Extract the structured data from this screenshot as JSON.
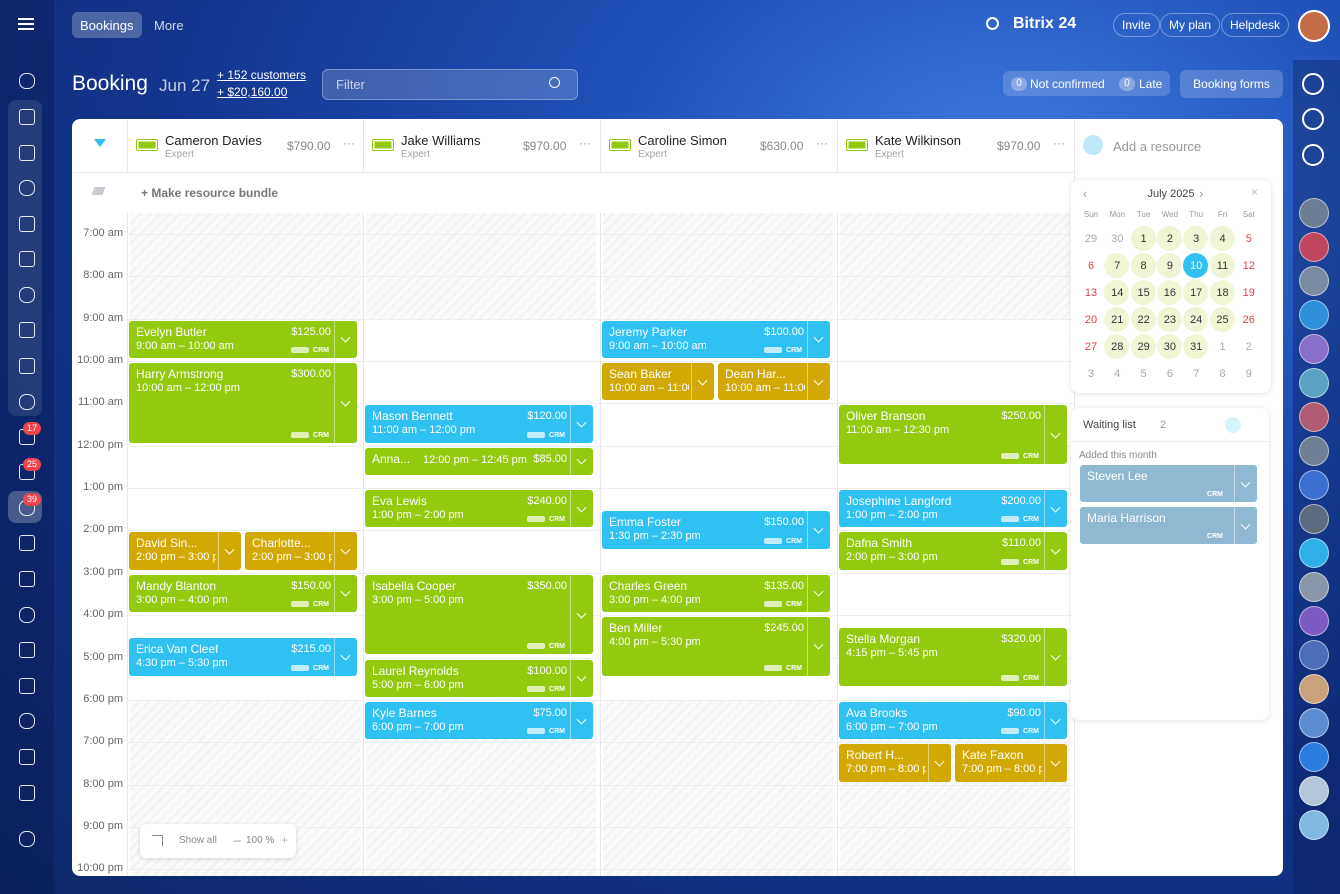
{
  "topbar": {
    "tabs": [
      "Bookings",
      "More"
    ],
    "brand": "Bitrix 24",
    "buttons": [
      "Invite",
      "My plan",
      "Helpdesk"
    ]
  },
  "header": {
    "title": "Booking",
    "date": "Jun 27",
    "customers": "+ 152 customers",
    "revenue": "+ $20,160.00",
    "filter": "Filter",
    "badges": [
      {
        "count": "0",
        "label": "Not confirmed"
      },
      {
        "count": "0",
        "label": "Late"
      }
    ],
    "forms": "Booking forms"
  },
  "sidebar_badges": [
    "17",
    "25",
    "39"
  ],
  "schedule": {
    "bundle": "Make resource bundle",
    "add_resource": "Add a resource",
    "crm_label": "CRM",
    "hour_range": [
      7,
      22
    ],
    "hours": [
      "7:00 am",
      "8:00 am",
      "9:00 am",
      "10:00 am",
      "11:00 am",
      "12:00 pm",
      "1:00 pm",
      "2:00 pm",
      "3:00 pm",
      "4:00 pm",
      "5:00 pm",
      "6:00 pm",
      "7:00 pm",
      "8:00 pm",
      "9:00 pm",
      "10:00 pm"
    ],
    "resources": [
      {
        "name": "Cameron Davies",
        "role": "Expert",
        "amount": "$790.00",
        "bookings": [
          {
            "name": "Evelyn Butler",
            "time": "9:00 am – 10:00 am",
            "price": "$125.00",
            "color": "#93c90f",
            "start": 9,
            "end": 10
          },
          {
            "name": "Harry Armstrong",
            "time": "10:00 am – 12:00 pm",
            "price": "$300.00",
            "color": "#93c90f",
            "start": 10,
            "end": 12
          },
          {
            "name": "David Sin...",
            "time": "2:00 pm – 3:00 p",
            "color": "#d2a804",
            "start": 14,
            "end": 15
          },
          {
            "name": "Charlotte...",
            "time": "2:00 pm – 3:00 p",
            "color": "#d2a804",
            "start": 14,
            "end": 15
          },
          {
            "name": "Mandy Blanton",
            "time": "3:00 pm – 4:00 pm",
            "price": "$150.00",
            "color": "#93c90f",
            "start": 15,
            "end": 16
          },
          {
            "name": "Erica Van Cleef",
            "time": "4:30 pm – 5:30 pm",
            "price": "$215.00",
            "color": "#2fc1f2",
            "start": 16.5,
            "end": 17.5
          }
        ]
      },
      {
        "name": "Jake Williams",
        "role": "Expert",
        "amount": "$970.00",
        "bookings": [
          {
            "name": "Mason Bennett",
            "time": "11:00 am – 12:00 pm",
            "price": "$120.00",
            "color": "#2fc1f2",
            "start": 11,
            "end": 12
          },
          {
            "name": "Anna...",
            "time": "12:00 pm – 12:45 pm",
            "price": "$85.00",
            "color": "#93c90f",
            "start": 12,
            "end": 12.75
          },
          {
            "name": "Eva Lewis",
            "time": "1:00 pm – 2:00 pm",
            "price": "$240.00",
            "color": "#93c90f",
            "start": 13,
            "end": 14
          },
          {
            "name": "Isabella Cooper",
            "time": "3:00 pm – 5:00 pm",
            "price": "$350.00",
            "color": "#93c90f",
            "start": 15,
            "end": 17
          },
          {
            "name": "Laurel Reynolds",
            "time": "5:00 pm – 6:00 pm",
            "price": "$100.00",
            "color": "#93c90f",
            "start": 17,
            "end": 18
          },
          {
            "name": "Kyle Barnes",
            "time": "6:00 pm – 7:00 pm",
            "price": "$75.00",
            "color": "#2fc1f2",
            "start": 18,
            "end": 19
          }
        ]
      },
      {
        "name": "Caroline Simon",
        "role": "Expert",
        "amount": "$630.00",
        "bookings": [
          {
            "name": "Jeremy Parker",
            "time": "9:00 am – 10:00 am",
            "price": "$100.00",
            "color": "#2fc1f2",
            "start": 9,
            "end": 10
          },
          {
            "name": "Sean Baker",
            "time": "10:00 am – 11:00",
            "color": "#d2a804",
            "start": 10,
            "end": 11
          },
          {
            "name": "Dean Har...",
            "time": "10:00 am – 11:00",
            "color": "#d2a804",
            "start": 10,
            "end": 11
          },
          {
            "name": "Emma Foster",
            "time": "1:30 pm – 2:30 pm",
            "price": "$150.00",
            "color": "#2fc1f2",
            "start": 13.5,
            "end": 14.5
          },
          {
            "name": "Charles Green",
            "time": "3:00 pm – 4:00 pm",
            "price": "$135.00",
            "color": "#93c90f",
            "start": 15,
            "end": 16
          },
          {
            "name": "Ben Miller",
            "time": "4:00 pm – 5:30 pm",
            "price": "$245.00",
            "color": "#93c90f",
            "start": 16,
            "end": 17.5
          }
        ]
      },
      {
        "name": "Kate Wilkinson",
        "role": "Expert",
        "amount": "$970.00",
        "bookings": [
          {
            "name": "Oliver Branson",
            "time": "11:00 am – 12:30 pm",
            "price": "$250.00",
            "color": "#93c90f",
            "start": 11,
            "end": 12.5
          },
          {
            "name": "Josephine Langford",
            "time": "1:00 pm – 2:00 pm",
            "price": "$200.00",
            "color": "#2fc1f2",
            "start": 13,
            "end": 14
          },
          {
            "name": "Dafna Smith",
            "time": "2:00 pm – 3:00 pm",
            "price": "$110.00",
            "color": "#93c90f",
            "start": 14,
            "end": 15
          },
          {
            "name": "Stella Morgan",
            "time": "4:15 pm – 5:45 pm",
            "price": "$320.00",
            "color": "#93c90f",
            "start": 16.25,
            "end": 17.75
          },
          {
            "name": "Ava Brooks",
            "time": "6:00 pm – 7:00 pm",
            "price": "$90.00",
            "color": "#2fc1f2",
            "start": 18,
            "end": 19
          },
          {
            "name": "Robert H...",
            "time": "7:00 pm – 8:00 p",
            "color": "#d2a804",
            "start": 19,
            "end": 20
          },
          {
            "name": "Kate Faxon",
            "time": "7:00 pm – 8:00 p",
            "color": "#d2a804",
            "start": 19,
            "end": 20
          }
        ]
      }
    ]
  },
  "calendar": {
    "month": "July 2025",
    "weekdays": [
      "Sun",
      "Mon",
      "Tue",
      "Wed",
      "Thu",
      "Fri",
      "Sat"
    ],
    "selected": 10,
    "weeks": [
      [
        29,
        30,
        1,
        2,
        3,
        4,
        5
      ],
      [
        6,
        7,
        8,
        9,
        10,
        11,
        12
      ],
      [
        13,
        14,
        15,
        16,
        17,
        18,
        19
      ],
      [
        20,
        21,
        22,
        23,
        24,
        25,
        26
      ],
      [
        27,
        28,
        29,
        30,
        31,
        1,
        2
      ],
      [
        3,
        4,
        5,
        6,
        7,
        8,
        9
      ]
    ]
  },
  "waiting_list": {
    "title": "Waiting list",
    "count": "2",
    "group": "Added this month",
    "items": [
      "Steven Lee",
      "Maria Harrison"
    ]
  },
  "zoom": {
    "show_all": "Show all",
    "level": "100 %"
  }
}
